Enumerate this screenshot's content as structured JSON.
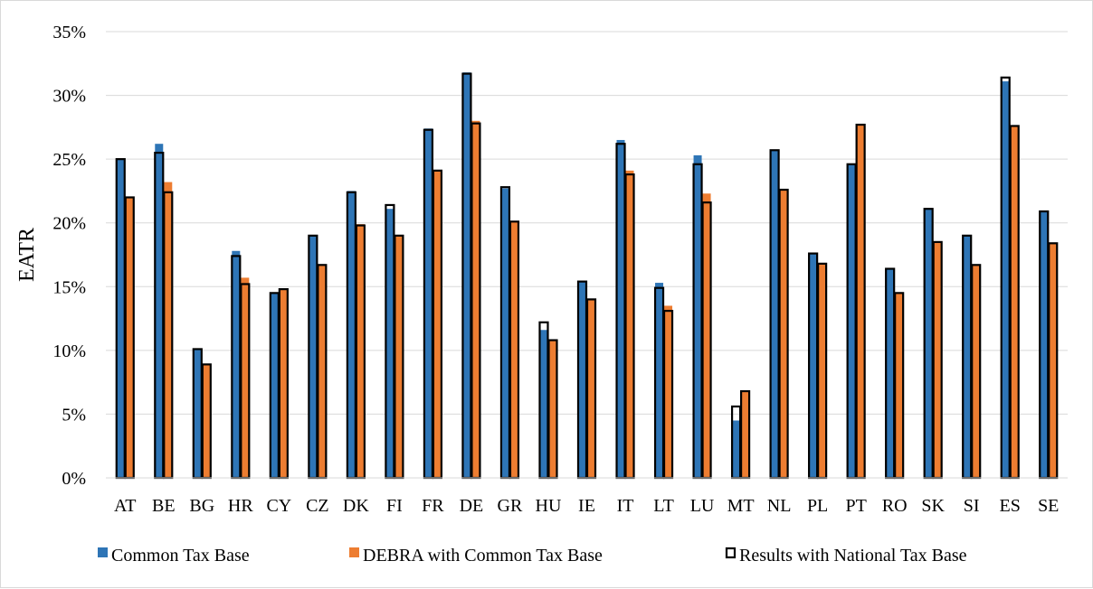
{
  "chart_data": {
    "type": "bar",
    "ylabel": "EATR",
    "ylim": [
      0,
      0.35
    ],
    "y_ticks": [
      "0%",
      "5%",
      "10%",
      "15%",
      "20%",
      "25%",
      "30%",
      "35%"
    ],
    "y_tick_values": [
      0,
      0.05,
      0.1,
      0.15,
      0.2,
      0.25,
      0.3,
      0.35
    ],
    "grid": true,
    "legend_position": "bottom",
    "categories": [
      "AT",
      "BE",
      "BG",
      "HR",
      "CY",
      "CZ",
      "DK",
      "FI",
      "FR",
      "DE",
      "GR",
      "HU",
      "IE",
      "IT",
      "LT",
      "LU",
      "MT",
      "NL",
      "PL",
      "PT",
      "RO",
      "SK",
      "SI",
      "ES",
      "SE"
    ],
    "series": [
      {
        "name": "Common Tax Base",
        "color": "#2e75b6",
        "values": [
          0.25,
          0.262,
          0.101,
          0.178,
          0.145,
          0.19,
          0.225,
          0.211,
          0.274,
          0.318,
          0.227,
          0.116,
          0.154,
          0.265,
          0.153,
          0.253,
          0.045,
          0.257,
          0.176,
          0.246,
          0.164,
          0.211,
          0.19,
          0.311,
          0.209
        ]
      },
      {
        "name": "DEBRA with Common Tax Base",
        "color": "#ed7d31",
        "values": [
          0.22,
          0.232,
          0.089,
          0.157,
          0.148,
          0.167,
          0.199,
          0.19,
          0.241,
          0.28,
          0.201,
          0.108,
          0.14,
          0.241,
          0.135,
          0.223,
          0.068,
          0.226,
          0.168,
          0.277,
          0.145,
          0.185,
          0.167,
          0.276,
          0.184
        ]
      },
      {
        "name": "Results with National Tax Base",
        "color": "#000000",
        "style": "outline",
        "pairs": [
          [
            0.25,
            0.22
          ],
          [
            0.255,
            0.224
          ],
          [
            0.101,
            0.089
          ],
          [
            0.174,
            0.152
          ],
          [
            0.145,
            0.148
          ],
          [
            0.19,
            0.167
          ],
          [
            0.224,
            0.198
          ],
          [
            0.214,
            0.19
          ],
          [
            0.273,
            0.241
          ],
          [
            0.317,
            0.278
          ],
          [
            0.228,
            0.201
          ],
          [
            0.122,
            0.108
          ],
          [
            0.154,
            0.14
          ],
          [
            0.262,
            0.238
          ],
          [
            0.149,
            0.131
          ],
          [
            0.246,
            0.216
          ],
          [
            0.056,
            0.068
          ],
          [
            0.257,
            0.226
          ],
          [
            0.176,
            0.168
          ],
          [
            0.246,
            0.277
          ],
          [
            0.164,
            0.145
          ],
          [
            0.211,
            0.185
          ],
          [
            0.19,
            0.167
          ],
          [
            0.314,
            0.276
          ],
          [
            0.209,
            0.184
          ]
        ]
      }
    ]
  }
}
